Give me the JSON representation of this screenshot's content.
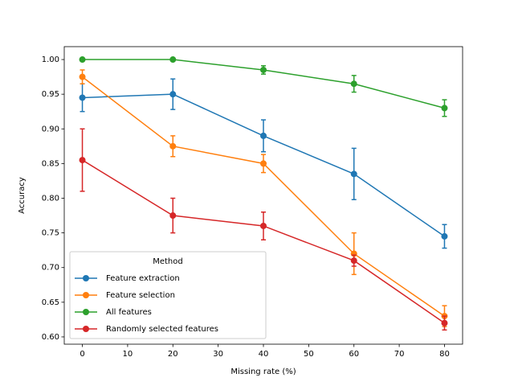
{
  "chart_data": {
    "type": "line",
    "xlabel": "Missing rate (%)",
    "ylabel": "Accuracy",
    "x": [
      0,
      20,
      40,
      60,
      80
    ],
    "series": [
      {
        "name": "Feature extraction",
        "color": "#1f77b4",
        "values": [
          0.945,
          0.95,
          0.89,
          0.835,
          0.745
        ],
        "errors": [
          0.02,
          0.022,
          0.023,
          0.037,
          0.017
        ]
      },
      {
        "name": "Feature selection",
        "color": "#ff7f0e",
        "values": [
          0.975,
          0.875,
          0.85,
          0.72,
          0.63
        ],
        "errors": [
          0.01,
          0.015,
          0.013,
          0.03,
          0.015
        ]
      },
      {
        "name": "All features",
        "color": "#2ca02c",
        "values": [
          1.0,
          1.0,
          0.985,
          0.965,
          0.93
        ],
        "errors": [
          0,
          0,
          0.006,
          0.012,
          0.012
        ]
      },
      {
        "name": "Randomly selected features",
        "color": "#d62728",
        "values": [
          0.855,
          0.775,
          0.76,
          0.71,
          0.62
        ],
        "errors": [
          0.045,
          0.025,
          0.02,
          0.008,
          0.01
        ]
      }
    ],
    "xlim": [
      -4,
      84
    ],
    "xticks": [
      0,
      10,
      20,
      30,
      40,
      50,
      60,
      70,
      80
    ],
    "ylim": [
      0.5895,
      1.0186
    ],
    "yticks": [
      {
        "value": 0.6,
        "label": "0.60"
      },
      0.65,
      {
        "value": 0.7,
        "label": "0.70"
      },
      0.75,
      {
        "value": 0.8,
        "label": "0.80"
      },
      0.85,
      {
        "value": 0.9,
        "label": "0.90"
      },
      0.95,
      {
        "value": 1.0,
        "label": "1.00"
      }
    ],
    "legend_title": "Method",
    "legend": "lower left",
    "grid": false
  }
}
